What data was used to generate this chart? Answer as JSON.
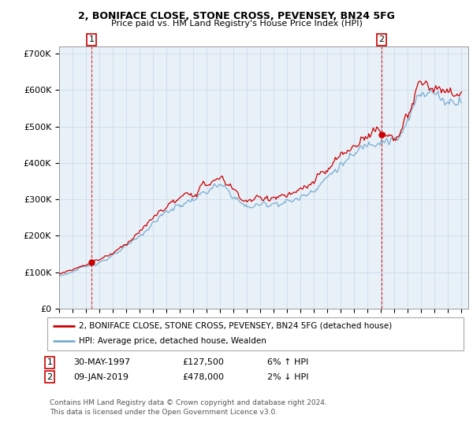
{
  "title": "2, BONIFACE CLOSE, STONE CROSS, PEVENSEY, BN24 5FG",
  "subtitle": "Price paid vs. HM Land Registry's House Price Index (HPI)",
  "ylim": [
    0,
    720000
  ],
  "yticks": [
    0,
    100000,
    200000,
    300000,
    400000,
    500000,
    600000,
    700000
  ],
  "ytick_labels": [
    "£0",
    "£100K",
    "£200K",
    "£300K",
    "£400K",
    "£500K",
    "£600K",
    "£700K"
  ],
  "t1_year": 1997.41,
  "t1_price": 127500,
  "t2_year": 2019.03,
  "t2_price": 478000,
  "legend_line1": "2, BONIFACE CLOSE, STONE CROSS, PEVENSEY, BN24 5FG (detached house)",
  "legend_line2": "HPI: Average price, detached house, Wealden",
  "table_row1": [
    "1",
    "30-MAY-1997",
    "£127,500",
    "6% ↑ HPI"
  ],
  "table_row2": [
    "2",
    "09-JAN-2019",
    "£478,000",
    "2% ↓ HPI"
  ],
  "footnote": "Contains HM Land Registry data © Crown copyright and database right 2024.\nThis data is licensed under the Open Government Licence v3.0.",
  "line_color_price": "#cc0000",
  "line_color_hpi": "#7aadcf",
  "vline_color": "#cc0000",
  "grid_color": "#c8d8e8",
  "plot_bg": "#e8f0f8",
  "background_color": "#ffffff",
  "box_color": "#cc0000",
  "year_start": 1995,
  "year_end": 2025
}
